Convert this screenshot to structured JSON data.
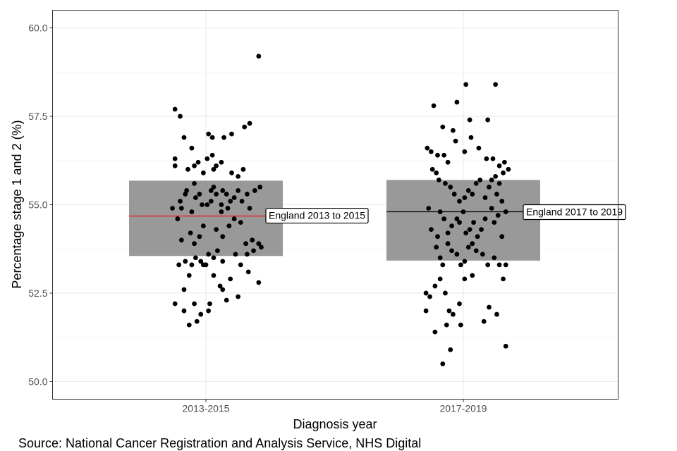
{
  "chart_data": {
    "type": "scatter",
    "title": "",
    "xlabel": "Diagnosis year",
    "ylabel": "Percentage stage 1 and 2 (%)",
    "categories": [
      "2013-2015",
      "2017-2019"
    ],
    "ylim": [
      49.5,
      60.5
    ],
    "yticks": [
      50.0,
      52.5,
      55.0,
      57.5,
      60.0
    ],
    "ytick_labels": [
      "50.0",
      "52.5",
      "55.0",
      "57.5",
      "60.0"
    ],
    "grid": true,
    "legend": "none",
    "bands": [
      {
        "category": "2013-2015",
        "low": 53.55,
        "high": 55.68,
        "mean": 54.68,
        "line_color": "#ff0000"
      },
      {
        "category": "2017-2019",
        "low": 53.42,
        "high": 55.7,
        "mean": 54.8,
        "line_color": "#000000"
      }
    ],
    "annotations": [
      {
        "category": "2013-2015",
        "text": "England 2013 to 2015",
        "y": 54.7
      },
      {
        "category": "2017-2019",
        "text": "England 2017 to 2019",
        "y": 54.8
      }
    ],
    "series": [
      {
        "category": "2013-2015",
        "points": [
          [
            -0.24,
            57.7
          ],
          [
            -0.2,
            57.5
          ],
          [
            -0.17,
            56.9
          ],
          [
            -0.11,
            56.6
          ],
          [
            0.02,
            57.0
          ],
          [
            0.05,
            56.9
          ],
          [
            0.14,
            56.9
          ],
          [
            0.2,
            57.0
          ],
          [
            0.3,
            57.2
          ],
          [
            0.34,
            57.3
          ],
          [
            0.41,
            59.2
          ],
          [
            -0.24,
            56.3
          ],
          [
            -0.24,
            56.1
          ],
          [
            -0.14,
            56.0
          ],
          [
            -0.09,
            56.1
          ],
          [
            -0.06,
            56.2
          ],
          [
            -0.02,
            55.9
          ],
          [
            0.01,
            56.3
          ],
          [
            0.05,
            56.4
          ],
          [
            0.08,
            56.1
          ],
          [
            0.06,
            56.0
          ],
          [
            0.12,
            56.2
          ],
          [
            0.2,
            55.9
          ],
          [
            0.25,
            55.8
          ],
          [
            0.29,
            56.0
          ],
          [
            -0.2,
            55.1
          ],
          [
            -0.19,
            54.9
          ],
          [
            -0.16,
            55.3
          ],
          [
            -0.15,
            55.4
          ],
          [
            -0.09,
            55.6
          ],
          [
            -0.08,
            55.2
          ],
          [
            -0.05,
            55.3
          ],
          [
            -0.03,
            55.0
          ],
          [
            0.01,
            55.0
          ],
          [
            0.04,
            55.1
          ],
          [
            0.04,
            55.4
          ],
          [
            0.06,
            55.5
          ],
          [
            0.08,
            55.3
          ],
          [
            0.12,
            55.0
          ],
          [
            0.13,
            55.4
          ],
          [
            0.16,
            55.3
          ],
          [
            0.17,
            54.9
          ],
          [
            0.19,
            55.1
          ],
          [
            0.22,
            55.2
          ],
          [
            0.25,
            55.4
          ],
          [
            0.28,
            55.1
          ],
          [
            0.32,
            55.3
          ],
          [
            0.34,
            54.9
          ],
          [
            0.38,
            55.4
          ],
          [
            0.42,
            55.5
          ],
          [
            -0.26,
            54.9
          ],
          [
            -0.22,
            54.6
          ],
          [
            -0.11,
            54.8
          ],
          [
            0.12,
            54.8
          ],
          [
            0.22,
            54.6
          ],
          [
            -0.19,
            54.0
          ],
          [
            -0.12,
            54.2
          ],
          [
            -0.09,
            53.9
          ],
          [
            -0.05,
            54.1
          ],
          [
            -0.02,
            54.4
          ],
          [
            0.08,
            54.3
          ],
          [
            0.13,
            54.1
          ],
          [
            0.18,
            54.4
          ],
          [
            0.27,
            54.5
          ],
          [
            0.31,
            53.9
          ],
          [
            0.36,
            54.0
          ],
          [
            0.41,
            53.9
          ],
          [
            0.43,
            53.8
          ],
          [
            -0.16,
            53.4
          ],
          [
            -0.11,
            53.3
          ],
          [
            -0.08,
            53.5
          ],
          [
            -0.04,
            53.4
          ],
          [
            0.0,
            53.3
          ],
          [
            0.02,
            53.6
          ],
          [
            0.06,
            53.5
          ],
          [
            0.09,
            53.7
          ],
          [
            0.13,
            53.4
          ],
          [
            0.23,
            53.6
          ],
          [
            0.27,
            53.3
          ],
          [
            0.32,
            53.6
          ],
          [
            0.37,
            53.7
          ],
          [
            -0.21,
            53.3
          ],
          [
            -0.17,
            52.6
          ],
          [
            -0.13,
            53.0
          ],
          [
            -0.09,
            52.2
          ],
          [
            -0.02,
            53.3
          ],
          [
            0.03,
            52.2
          ],
          [
            0.06,
            53.0
          ],
          [
            0.11,
            52.7
          ],
          [
            0.13,
            52.6
          ],
          [
            0.16,
            52.3
          ],
          [
            0.19,
            52.9
          ],
          [
            0.25,
            52.4
          ],
          [
            0.33,
            53.1
          ],
          [
            0.41,
            52.8
          ],
          [
            -0.24,
            52.2
          ],
          [
            -0.17,
            52.0
          ],
          [
            -0.13,
            51.6
          ],
          [
            -0.07,
            51.7
          ],
          [
            -0.04,
            51.9
          ],
          [
            0.02,
            52.0
          ]
        ]
      },
      {
        "category": "2017-2019",
        "points": [
          [
            -0.23,
            57.8
          ],
          [
            -0.16,
            57.2
          ],
          [
            -0.08,
            57.1
          ],
          [
            -0.05,
            57.9
          ],
          [
            0.02,
            58.4
          ],
          [
            0.05,
            57.4
          ],
          [
            0.19,
            57.4
          ],
          [
            0.25,
            58.4
          ],
          [
            -0.28,
            56.6
          ],
          [
            -0.25,
            56.5
          ],
          [
            -0.2,
            56.4
          ],
          [
            -0.15,
            56.4
          ],
          [
            -0.12,
            56.2
          ],
          [
            -0.06,
            56.8
          ],
          [
            0.01,
            56.5
          ],
          [
            0.06,
            56.9
          ],
          [
            0.12,
            56.6
          ],
          [
            0.18,
            56.3
          ],
          [
            0.23,
            56.3
          ],
          [
            0.28,
            56.1
          ],
          [
            0.32,
            56.2
          ],
          [
            -0.24,
            56.0
          ],
          [
            -0.21,
            55.9
          ],
          [
            -0.19,
            55.7
          ],
          [
            -0.14,
            55.6
          ],
          [
            -0.1,
            55.5
          ],
          [
            -0.07,
            55.3
          ],
          [
            -0.03,
            55.1
          ],
          [
            0.01,
            55.2
          ],
          [
            0.04,
            55.4
          ],
          [
            0.07,
            55.3
          ],
          [
            0.1,
            55.6
          ],
          [
            0.13,
            55.7
          ],
          [
            0.17,
            55.2
          ],
          [
            0.2,
            55.5
          ],
          [
            0.22,
            55.7
          ],
          [
            0.25,
            55.8
          ],
          [
            0.26,
            55.3
          ],
          [
            0.28,
            55.6
          ],
          [
            0.31,
            55.9
          ],
          [
            0.35,
            56.0
          ],
          [
            0.3,
            55.1
          ],
          [
            -0.27,
            54.9
          ],
          [
            -0.25,
            54.3
          ],
          [
            -0.2,
            54.1
          ],
          [
            -0.18,
            54.8
          ],
          [
            -0.15,
            54.6
          ],
          [
            -0.12,
            54.2
          ],
          [
            -0.09,
            54.4
          ],
          [
            -0.05,
            54.6
          ],
          [
            -0.03,
            54.5
          ],
          [
            0.0,
            54.8
          ],
          [
            0.02,
            54.2
          ],
          [
            0.05,
            54.3
          ],
          [
            0.08,
            54.5
          ],
          [
            0.11,
            54.1
          ],
          [
            0.14,
            54.3
          ],
          [
            0.17,
            54.6
          ],
          [
            0.22,
            54.9
          ],
          [
            0.24,
            54.5
          ],
          [
            0.27,
            54.7
          ],
          [
            0.3,
            54.1
          ],
          [
            0.33,
            54.8
          ],
          [
            -0.21,
            53.8
          ],
          [
            -0.18,
            53.5
          ],
          [
            -0.16,
            53.3
          ],
          [
            -0.12,
            53.9
          ],
          [
            -0.09,
            53.7
          ],
          [
            -0.05,
            53.6
          ],
          [
            -0.02,
            53.3
          ],
          [
            0.01,
            53.4
          ],
          [
            0.04,
            53.8
          ],
          [
            0.07,
            53.9
          ],
          [
            0.1,
            53.7
          ],
          [
            0.15,
            53.6
          ],
          [
            0.19,
            53.3
          ],
          [
            0.24,
            53.5
          ],
          [
            0.28,
            53.3
          ],
          [
            0.33,
            53.3
          ],
          [
            -0.29,
            52.5
          ],
          [
            -0.26,
            52.4
          ],
          [
            -0.22,
            52.7
          ],
          [
            -0.18,
            52.9
          ],
          [
            -0.14,
            52.5
          ],
          [
            -0.11,
            52.0
          ],
          [
            -0.08,
            51.9
          ],
          [
            -0.03,
            52.2
          ],
          [
            0.01,
            52.9
          ],
          [
            0.07,
            53.0
          ],
          [
            0.16,
            51.7
          ],
          [
            0.2,
            52.1
          ],
          [
            0.26,
            51.9
          ],
          [
            0.31,
            52.9
          ],
          [
            -0.29,
            52.0
          ],
          [
            -0.22,
            51.4
          ],
          [
            -0.13,
            51.6
          ],
          [
            -0.02,
            51.6
          ],
          [
            -0.16,
            50.5
          ],
          [
            -0.1,
            50.9
          ],
          [
            0.33,
            51.0
          ]
        ]
      }
    ]
  },
  "source_note": "Source: National Cancer Registration and Analysis Service, NHS Digital"
}
